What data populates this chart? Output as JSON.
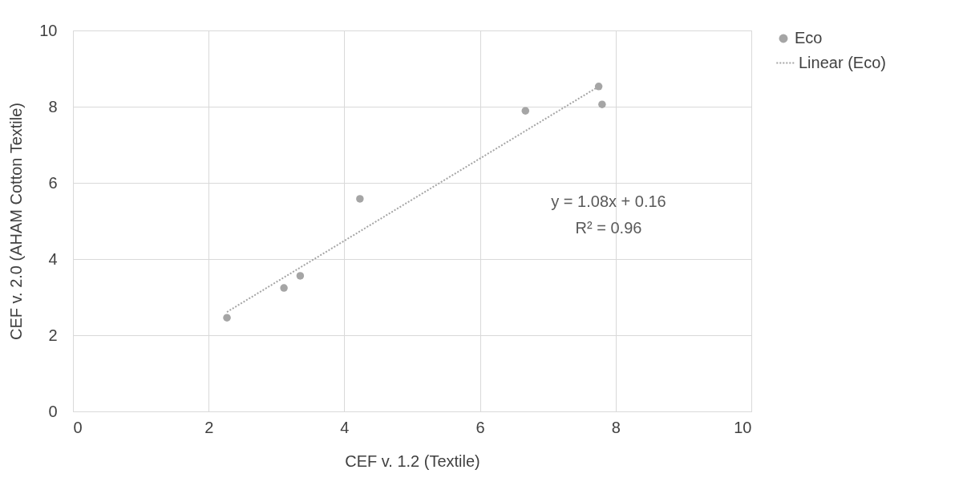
{
  "chart_data": {
    "type": "scatter",
    "xlabel": "CEF v. 1.2 (Textile)",
    "ylabel": "CEF v. 2.0 (AHAM Cotton Textile)",
    "x": [
      2.27,
      3.11,
      3.35,
      4.23,
      6.67,
      7.75,
      7.8
    ],
    "series": [
      {
        "name": "Eco",
        "color": "#a5a5a5",
        "marker": "circle",
        "values": [
          2.46,
          3.24,
          3.56,
          5.58,
          7.89,
          8.53,
          8.06
        ]
      },
      {
        "name": "Linear (Eco)",
        "type": "line",
        "color": "#a5a5a5",
        "line_style": "dotted",
        "x": [
          2.27,
          7.75
        ],
        "values": [
          2.61,
          8.53
        ]
      }
    ],
    "annotations": [
      "y = 1.08x + 0.16",
      "R² = 0.96"
    ],
    "xlim": [
      0,
      10
    ],
    "ylim": [
      0,
      10
    ],
    "xticks": [
      0,
      2,
      4,
      6,
      8,
      10
    ],
    "yticks": [
      0,
      2,
      4,
      6,
      8,
      10
    ],
    "grid": true,
    "legend": "right"
  }
}
